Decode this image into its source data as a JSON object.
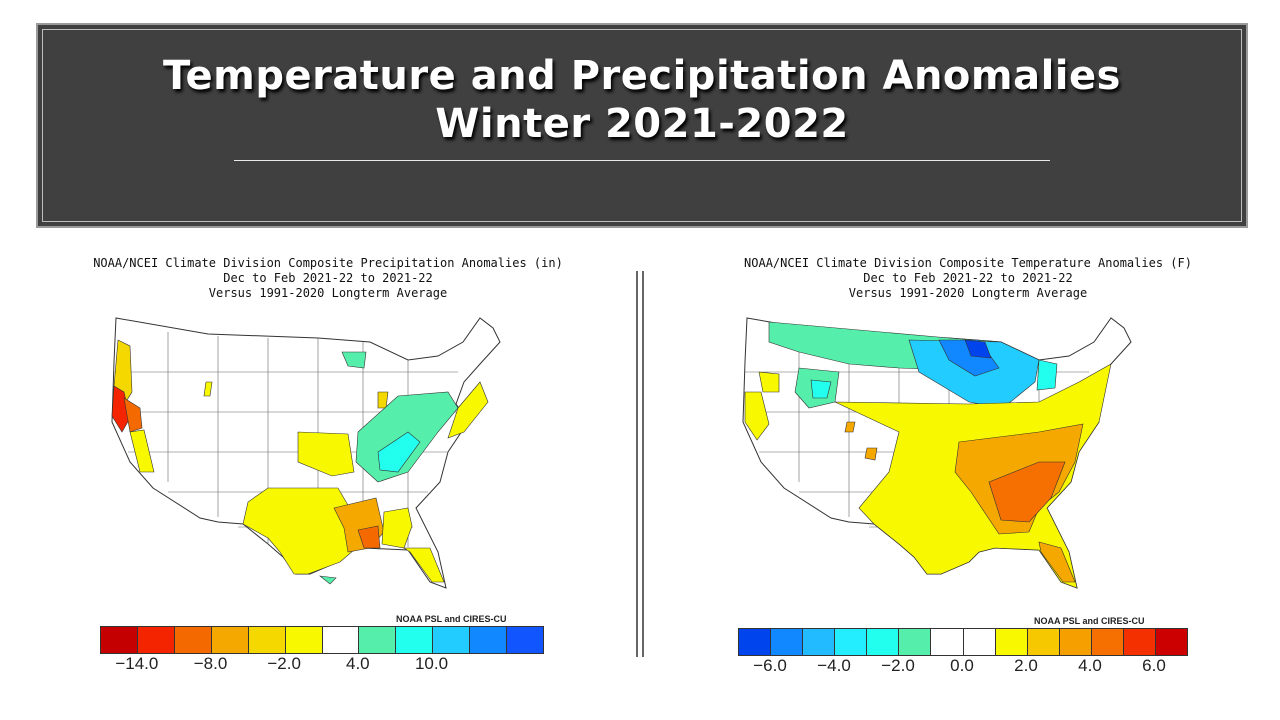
{
  "slide": {
    "title_line1": "Temperature and Precipitation Anomalies",
    "title_line2": "Winter 2021-2022"
  },
  "left_map": {
    "caption": [
      "NOAA/NCEI Climate Division Composite Precipitation Anomalies (in)",
      "Dec to Feb 2021-22 to 2021-22",
      "Versus 1991-2020 Longterm Average"
    ],
    "credit": "NOAA PSL and CIRES-CU",
    "scale_colors": [
      "#c40000",
      "#f52400",
      "#f56a00",
      "#f5a800",
      "#f5d800",
      "#f8f800",
      "#ffffff",
      "#55eeaa",
      "#22ffee",
      "#22ccff",
      "#1188ff",
      "#1155ff"
    ],
    "tick_labels": [
      "-14.0",
      "-8.0",
      "-2.0",
      "4.0",
      "10.0"
    ]
  },
  "right_map": {
    "caption": [
      "NOAA/NCEI Climate Division Composite Temperature Anomalies (F)",
      "Dec to Feb 2021-22 to 2021-22",
      "Versus 1991-2020 Longterm Average"
    ],
    "credit": "NOAA PSL and CIRES-CU",
    "scale_colors": [
      "#0044ee",
      "#1188ff",
      "#22bbff",
      "#22eeff",
      "#22ffee",
      "#55eeaa",
      "#ffffff",
      "#ffffff",
      "#f8f800",
      "#f5c800",
      "#f5a000",
      "#f57000",
      "#f53000",
      "#cc0000"
    ],
    "tick_labels": [
      "-6.0",
      "-4.0",
      "-2.0",
      "0.0",
      "2.0",
      "4.0",
      "6.0"
    ]
  }
}
